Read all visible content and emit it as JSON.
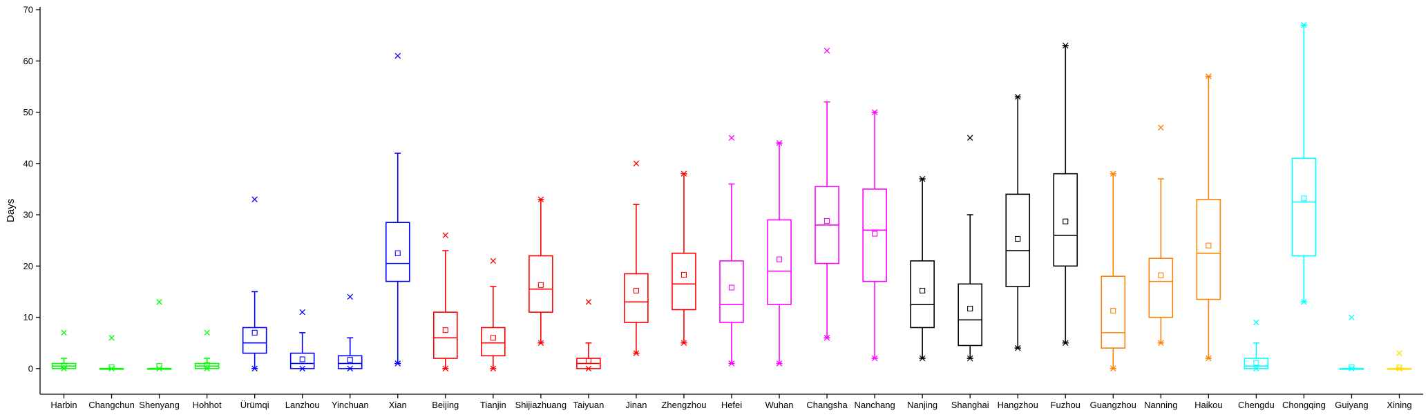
{
  "chart_data": {
    "type": "box",
    "title": "",
    "xlabel": "",
    "ylabel": "Days",
    "ylim": [
      -5,
      70
    ],
    "yticks": [
      0,
      10,
      20,
      30,
      40,
      50,
      60,
      70
    ],
    "stat_fields": [
      "min",
      "q1",
      "median",
      "q3",
      "whisker_high",
      "mean",
      "max_marker",
      "min_marker"
    ],
    "categories": [
      {
        "name": "Harbin",
        "color": "#00ff00",
        "min": 0,
        "q1": 0,
        "median": 0.5,
        "q3": 1,
        "whisker_high": 2,
        "mean": 0.6,
        "max_marker": 7,
        "min_marker": 0
      },
      {
        "name": "Changchun",
        "color": "#00ff00",
        "min": 0,
        "q1": 0,
        "median": 0,
        "q3": 0,
        "whisker_high": 0,
        "mean": 0.3,
        "max_marker": 6,
        "min_marker": 0
      },
      {
        "name": "Shenyang",
        "color": "#00ff00",
        "min": 0,
        "q1": 0,
        "median": 0,
        "q3": 0,
        "whisker_high": 0,
        "mean": 0.5,
        "max_marker": 13,
        "min_marker": 0
      },
      {
        "name": "Hohhot",
        "color": "#00ff00",
        "min": 0,
        "q1": 0,
        "median": 0.5,
        "q3": 1,
        "whisker_high": 2,
        "mean": 0.7,
        "max_marker": 7,
        "min_marker": 0
      },
      {
        "name": "Ürümqi",
        "color": "#0000ff",
        "min": 0,
        "q1": 3,
        "median": 5,
        "q3": 8,
        "whisker_high": 15,
        "mean": 7,
        "max_marker": 33,
        "min_marker": 0
      },
      {
        "name": "Lanzhou",
        "color": "#0000ff",
        "min": 0,
        "q1": 0,
        "median": 1,
        "q3": 3,
        "whisker_high": 7,
        "mean": 1.8,
        "max_marker": 11,
        "min_marker": 0
      },
      {
        "name": "Yinchuan",
        "color": "#0000ff",
        "min": 0,
        "q1": 0,
        "median": 1,
        "q3": 2.5,
        "whisker_high": 6,
        "mean": 1.7,
        "max_marker": 14,
        "min_marker": 0
      },
      {
        "name": "Xian",
        "color": "#0000ff",
        "min": 1,
        "q1": 17,
        "median": 20.5,
        "q3": 28.5,
        "whisker_high": 42,
        "mean": 22.5,
        "max_marker": 61,
        "min_marker": 1
      },
      {
        "name": "Beijing",
        "color": "#ff0000",
        "min": 0,
        "q1": 2,
        "median": 6,
        "q3": 11,
        "whisker_high": 23,
        "mean": 7.5,
        "max_marker": 26,
        "min_marker": 0
      },
      {
        "name": "Tianjin",
        "color": "#ff0000",
        "min": 0,
        "q1": 2.5,
        "median": 5,
        "q3": 8,
        "whisker_high": 16,
        "mean": 6,
        "max_marker": 21,
        "min_marker": 0
      },
      {
        "name": "Shijiazhuang",
        "color": "#ff0000",
        "min": 5,
        "q1": 11,
        "median": 15.5,
        "q3": 22,
        "whisker_high": 33,
        "mean": 16.3,
        "max_marker": 33,
        "min_marker": 5
      },
      {
        "name": "Taiyuan",
        "color": "#ff0000",
        "min": 0,
        "q1": 0,
        "median": 1,
        "q3": 2,
        "whisker_high": 5,
        "mean": 1.5,
        "max_marker": 13,
        "min_marker": 0
      },
      {
        "name": "Jinan",
        "color": "#ff0000",
        "min": 3,
        "q1": 9,
        "median": 13,
        "q3": 18.5,
        "whisker_high": 32,
        "mean": 15.2,
        "max_marker": 40,
        "min_marker": 3
      },
      {
        "name": "Zhengzhou",
        "color": "#ff0000",
        "min": 5,
        "q1": 11.5,
        "median": 16.5,
        "q3": 22.5,
        "whisker_high": 38,
        "mean": 18.3,
        "max_marker": 38,
        "min_marker": 5
      },
      {
        "name": "Hefei",
        "color": "#ff00ff",
        "min": 1,
        "q1": 9,
        "median": 12.5,
        "q3": 21,
        "whisker_high": 36,
        "mean": 15.8,
        "max_marker": 45,
        "min_marker": 1
      },
      {
        "name": "Wuhan",
        "color": "#ff00ff",
        "min": 1,
        "q1": 12.5,
        "median": 19,
        "q3": 29,
        "whisker_high": 44,
        "mean": 21.3,
        "max_marker": 44,
        "min_marker": 1
      },
      {
        "name": "Changsha",
        "color": "#ff00ff",
        "min": 6,
        "q1": 20.5,
        "median": 28,
        "q3": 35.5,
        "whisker_high": 52,
        "mean": 28.8,
        "max_marker": 62,
        "min_marker": 6
      },
      {
        "name": "Nanchang",
        "color": "#ff00ff",
        "min": 2,
        "q1": 17,
        "median": 27,
        "q3": 35,
        "whisker_high": 50,
        "mean": 26.3,
        "max_marker": 50,
        "min_marker": 2
      },
      {
        "name": "Nanjing",
        "color": "#000000",
        "min": 2,
        "q1": 8,
        "median": 12.5,
        "q3": 21,
        "whisker_high": 37,
        "mean": 15.2,
        "max_marker": 37,
        "min_marker": 2
      },
      {
        "name": "Shanghai",
        "color": "#000000",
        "min": 2,
        "q1": 4.5,
        "median": 9.5,
        "q3": 16.5,
        "whisker_high": 30,
        "mean": 11.7,
        "max_marker": 45,
        "min_marker": 2
      },
      {
        "name": "Hangzhou",
        "color": "#000000",
        "min": 4,
        "q1": 16,
        "median": 23,
        "q3": 34,
        "whisker_high": 53,
        "mean": 25.3,
        "max_marker": 53,
        "min_marker": 4
      },
      {
        "name": "Fuzhou",
        "color": "#000000",
        "min": 5,
        "q1": 20,
        "median": 26,
        "q3": 38,
        "whisker_high": 63,
        "mean": 28.7,
        "max_marker": 63,
        "min_marker": 5
      },
      {
        "name": "Guangzhou",
        "color": "#ff8000",
        "min": 0,
        "q1": 4,
        "median": 7,
        "q3": 18,
        "whisker_high": 38,
        "mean": 11.3,
        "max_marker": 38,
        "min_marker": 0
      },
      {
        "name": "Nanning",
        "color": "#ff8000",
        "min": 5,
        "q1": 10,
        "median": 17,
        "q3": 21.5,
        "whisker_high": 37,
        "mean": 18.2,
        "max_marker": 47,
        "min_marker": 5
      },
      {
        "name": "Haikou",
        "color": "#ff8000",
        "min": 2,
        "q1": 13.5,
        "median": 22.5,
        "q3": 33,
        "whisker_high": 57,
        "mean": 24,
        "max_marker": 57,
        "min_marker": 2
      },
      {
        "name": "Chengdu",
        "color": "#00ffff",
        "min": 0,
        "q1": 0,
        "median": 0.5,
        "q3": 2,
        "whisker_high": 5,
        "mean": 1.1,
        "max_marker": 9,
        "min_marker": 0
      },
      {
        "name": "Chongqing",
        "color": "#00ffff",
        "min": 13,
        "q1": 22,
        "median": 32.5,
        "q3": 41,
        "whisker_high": 67,
        "mean": 33.2,
        "max_marker": 67,
        "min_marker": 13
      },
      {
        "name": "Guiyang",
        "color": "#00ffff",
        "min": 0,
        "q1": 0,
        "median": 0,
        "q3": 0,
        "whisker_high": 0,
        "mean": 0.3,
        "max_marker": 10,
        "min_marker": 0
      },
      {
        "name": "Xining",
        "color": "#ffdd00",
        "min": 0,
        "q1": 0,
        "median": 0,
        "q3": 0,
        "whisker_high": 0,
        "mean": 0.2,
        "max_marker": 3,
        "min_marker": 0
      }
    ]
  }
}
